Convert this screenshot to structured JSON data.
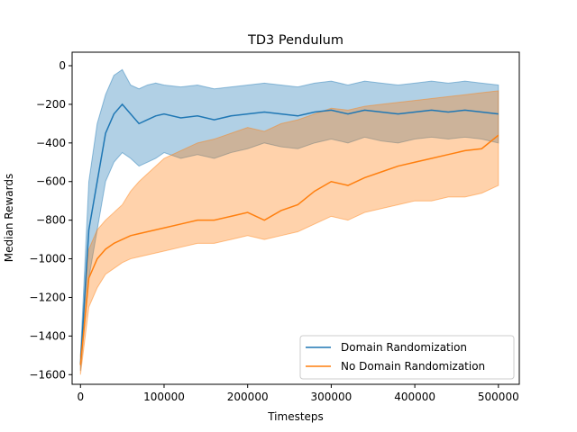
{
  "chart_data": {
    "type": "line",
    "title": "TD3 Pendulum",
    "xlabel": "Timesteps",
    "ylabel": "Median Rewards",
    "xlim": [
      -10000,
      525000
    ],
    "ylim": [
      -1650,
      70
    ],
    "xticks": [
      0,
      100000,
      200000,
      300000,
      400000,
      500000
    ],
    "xtick_labels": [
      "0",
      "100000",
      "200000",
      "300000",
      "400000",
      "500000"
    ],
    "yticks": [
      0,
      -200,
      -400,
      -600,
      -800,
      -1000,
      -1200,
      -1400,
      -1600
    ],
    "ytick_labels": [
      "0",
      "−200",
      "−400",
      "−600",
      "−800",
      "−1000",
      "−1200",
      "−1400",
      "−1600"
    ],
    "grid": false,
    "legend_position": "lower-right",
    "series": [
      {
        "name": "Domain Randomization",
        "color": "#1f77b4",
        "x": [
          0,
          10000,
          20000,
          30000,
          40000,
          50000,
          60000,
          70000,
          80000,
          90000,
          100000,
          120000,
          140000,
          160000,
          180000,
          200000,
          220000,
          240000,
          260000,
          280000,
          300000,
          320000,
          340000,
          360000,
          380000,
          400000,
          420000,
          440000,
          460000,
          480000,
          500000
        ],
        "values": [
          -1550,
          -850,
          -600,
          -350,
          -250,
          -200,
          -250,
          -300,
          -280,
          -260,
          -250,
          -270,
          -260,
          -280,
          -260,
          -250,
          -240,
          -250,
          -260,
          -240,
          -230,
          -250,
          -230,
          -240,
          -250,
          -240,
          -230,
          -240,
          -230,
          -240,
          -250
        ],
        "lower": [
          -1580,
          -1100,
          -850,
          -600,
          -500,
          -450,
          -480,
          -520,
          -500,
          -480,
          -450,
          -480,
          -460,
          -480,
          -450,
          -430,
          -400,
          -420,
          -430,
          -400,
          -380,
          -400,
          -370,
          -390,
          -400,
          -380,
          -370,
          -380,
          -370,
          -380,
          -400
        ],
        "upper": [
          -1500,
          -600,
          -300,
          -150,
          -50,
          -20,
          -100,
          -120,
          -100,
          -90,
          -100,
          -110,
          -100,
          -120,
          -110,
          -100,
          -90,
          -100,
          -110,
          -90,
          -80,
          -100,
          -80,
          -90,
          -100,
          -90,
          -80,
          -90,
          -80,
          -90,
          -100
        ]
      },
      {
        "name": "No Domain Randomization",
        "color": "#ff7f0e",
        "x": [
          0,
          10000,
          20000,
          30000,
          40000,
          50000,
          60000,
          70000,
          80000,
          90000,
          100000,
          120000,
          140000,
          160000,
          180000,
          200000,
          220000,
          240000,
          260000,
          280000,
          300000,
          320000,
          340000,
          360000,
          380000,
          400000,
          420000,
          440000,
          460000,
          480000,
          500000
        ],
        "values": [
          -1550,
          -1100,
          -1000,
          -950,
          -920,
          -900,
          -880,
          -870,
          -860,
          -850,
          -840,
          -820,
          -800,
          -800,
          -780,
          -760,
          -800,
          -750,
          -720,
          -650,
          -600,
          -620,
          -580,
          -550,
          -520,
          -500,
          -480,
          -460,
          -440,
          -430,
          -360
        ],
        "lower": [
          -1600,
          -1250,
          -1150,
          -1080,
          -1050,
          -1020,
          -1000,
          -990,
          -980,
          -970,
          -960,
          -940,
          -920,
          -920,
          -900,
          -880,
          -900,
          -880,
          -860,
          -820,
          -780,
          -800,
          -760,
          -740,
          -720,
          -700,
          -700,
          -680,
          -680,
          -660,
          -620
        ],
        "upper": [
          -1500,
          -950,
          -850,
          -800,
          -760,
          -720,
          -650,
          -600,
          -560,
          -520,
          -480,
          -440,
          -400,
          -380,
          -350,
          -320,
          -340,
          -300,
          -280,
          -250,
          -220,
          -230,
          -210,
          -200,
          -190,
          -180,
          -170,
          -160,
          -150,
          -140,
          -130
        ]
      }
    ]
  }
}
